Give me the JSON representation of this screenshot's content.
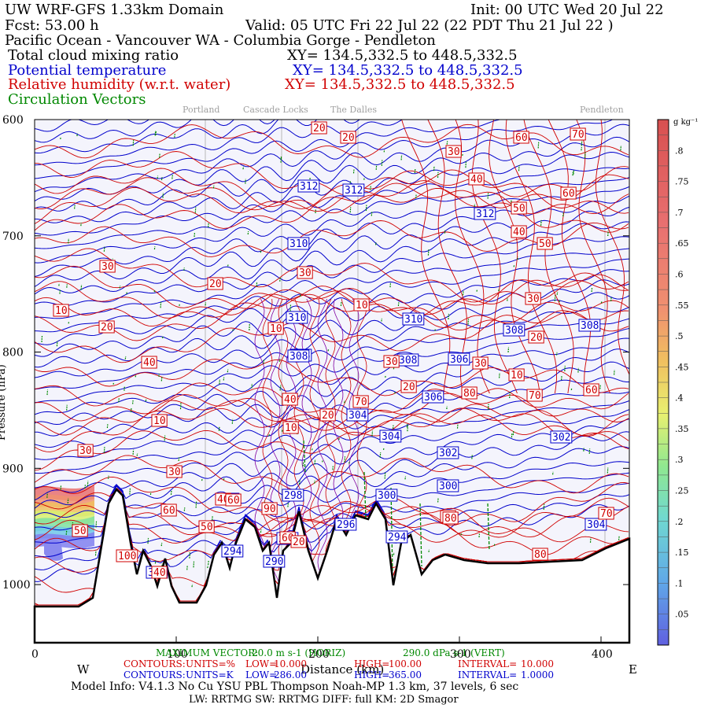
{
  "header": {
    "title": "UW WRF-GFS 1.33km Domain",
    "init": "Init: 00 UTC Wed 20 Jul 22",
    "fcst": "Fcst:   53.00 h",
    "valid": "Valid: 05 UTC Fri 22 Jul 22   (22 PDT Thu 21 Jul 22  )",
    "region": "Pacific Ocean - Vancouver WA - Columbia Gorge - Pendleton",
    "var1": "Total cloud mixing ratio",
    "var1_xy": "XY= 134.5,332.5 to 448.5,332.5",
    "var2": "Potential temperature",
    "var2_xy": "XY= 134.5,332.5 to 448.5,332.5",
    "var3": "Relative humidity (w.r.t. water)",
    "var3_xy": "XY= 134.5,332.5 to 448.5,332.5",
    "var4": "Circulation Vectors"
  },
  "places": [
    "Portland",
    "Cascade Locks",
    "The Dalles",
    "Pendleton"
  ],
  "chart_data": {
    "type": "cross-section",
    "x_axis": {
      "label": "Distance (km)",
      "range": [
        0,
        420
      ],
      "ticks": [
        "0",
        "100",
        "200",
        "300",
        "400"
      ],
      "left_dir": "W",
      "right_dir": "E"
    },
    "y_axis": {
      "label": "Pressure (hPa)",
      "range": [
        1050,
        600
      ],
      "ticks": [
        "600",
        "700",
        "800",
        "900",
        "1000"
      ]
    },
    "colorbar": {
      "unit": "g kg⁻¹",
      "ticks": [
        ".8",
        ".75",
        ".7",
        ".65",
        ".6",
        ".55",
        ".5",
        ".45",
        ".4",
        ".35",
        ".3",
        ".25",
        ".2",
        ".15",
        ".1",
        ".05"
      ],
      "min": 0.0,
      "max": 0.85
    },
    "potential_temperature_labels": [
      "312",
      "312",
      "312",
      "310",
      "310",
      "310",
      "308",
      "308",
      "308",
      "308",
      "306",
      "306",
      "304",
      "304",
      "302",
      "302",
      "300",
      "300",
      "298",
      "298",
      "296",
      "296",
      "294",
      "294",
      "290",
      "304",
      "306",
      "308"
    ],
    "relative_humidity_labels": [
      "20",
      "20",
      "60",
      "70",
      "30",
      "40",
      "60",
      "50",
      "40",
      "50",
      "30",
      "30",
      "20",
      "30",
      "10",
      "10",
      "20",
      "10",
      "20",
      "40",
      "30",
      "10",
      "30",
      "70",
      "20",
      "80",
      "60",
      "70",
      "40",
      "10",
      "20",
      "10",
      "30",
      "30",
      "40",
      "90",
      "60",
      "70",
      "80",
      "50",
      "50",
      "60",
      "100",
      "80",
      "80",
      "40",
      "20",
      "60"
    ],
    "legend_rows": [
      {
        "type": "MAXIMUM VECTOR:",
        "a": "20.0 m s-1 (HORIZ)",
        "b": "290.0 dPa s-1 (VERT)"
      },
      {
        "type": "CONTOURS:",
        "units": "UNITS=%",
        "low": "LOW=",
        "low_v": "10.000",
        "high": "HIGH=",
        "high_v": "100.00",
        "interval": "INTERVAL=",
        "interval_v": "10.000"
      },
      {
        "type": "CONTOURS:",
        "units": "UNITS=K",
        "low": "LOW=",
        "low_v": "286.00",
        "high": "HIGH=",
        "high_v": "365.00",
        "interval": "INTERVAL=",
        "interval_v": "1.0000"
      }
    ]
  },
  "footer": {
    "model": "Model Info: V4.1.3    No Cu   YSU PBL  Thompson    Noah-MP   1.3 km,  37 levels,    6 sec",
    "phys": "LW: RRTMG SW: RRTMG    DIFF: full   KM: 2D Smagor"
  },
  "colors": {
    "red": "#d00000",
    "blue": "#0000cc",
    "green": "#008800",
    "background": "#f4f4fc"
  }
}
